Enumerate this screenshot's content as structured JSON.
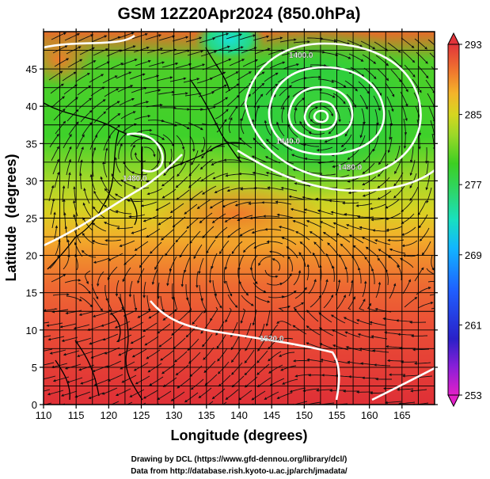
{
  "chart_data": {
    "type": "heatmap",
    "title": "GSM 12Z20Apr2024 (850.0hPa)",
    "xlabel": "Longitude (degrees)",
    "ylabel": "Latitude  (degrees)",
    "xlim": [
      110,
      170
    ],
    "ylim": [
      0,
      50
    ],
    "x_ticks": [
      "110",
      "115",
      "120",
      "125",
      "130",
      "135",
      "140",
      "145",
      "150",
      "155",
      "160",
      "165"
    ],
    "y_ticks": [
      "0",
      "5",
      "10",
      "15",
      "20",
      "25",
      "30",
      "35",
      "40",
      "45"
    ],
    "grid": true,
    "colorbar": {
      "min": 253,
      "max": 293,
      "tick_labels": [
        "293",
        "285",
        "277",
        "269",
        "261",
        "253"
      ],
      "colors": [
        "#d81fd0",
        "#7a1fd8",
        "#1c1cc8",
        "#1f66ff",
        "#10b4ff",
        "#19dfc0",
        "#39d25a",
        "#3fcf24",
        "#8fd82a",
        "#d8d820",
        "#f5b52a",
        "#f37a2e",
        "#eb4a36",
        "#e0323a"
      ]
    },
    "contours": [
      {
        "label": "1400.0",
        "lon": 149.5,
        "lat": 46.5
      },
      {
        "label": "1440.0",
        "lon": 147.5,
        "lat": 35.0
      },
      {
        "label": "1480.0",
        "lon": 157.0,
        "lat": 31.5
      },
      {
        "label": "1480.0",
        "lon": 124.0,
        "lat": 30.0
      },
      {
        "label": "1520.0",
        "lon": 145.0,
        "lat": 8.5
      }
    ]
  },
  "credits": {
    "line1": "Drawing by DCL (https://www.gfd-dennou.org/library/dcl/)",
    "line2": "Data from http://database.rish.kyoto-u.ac.jp/arch/jmadata/"
  }
}
